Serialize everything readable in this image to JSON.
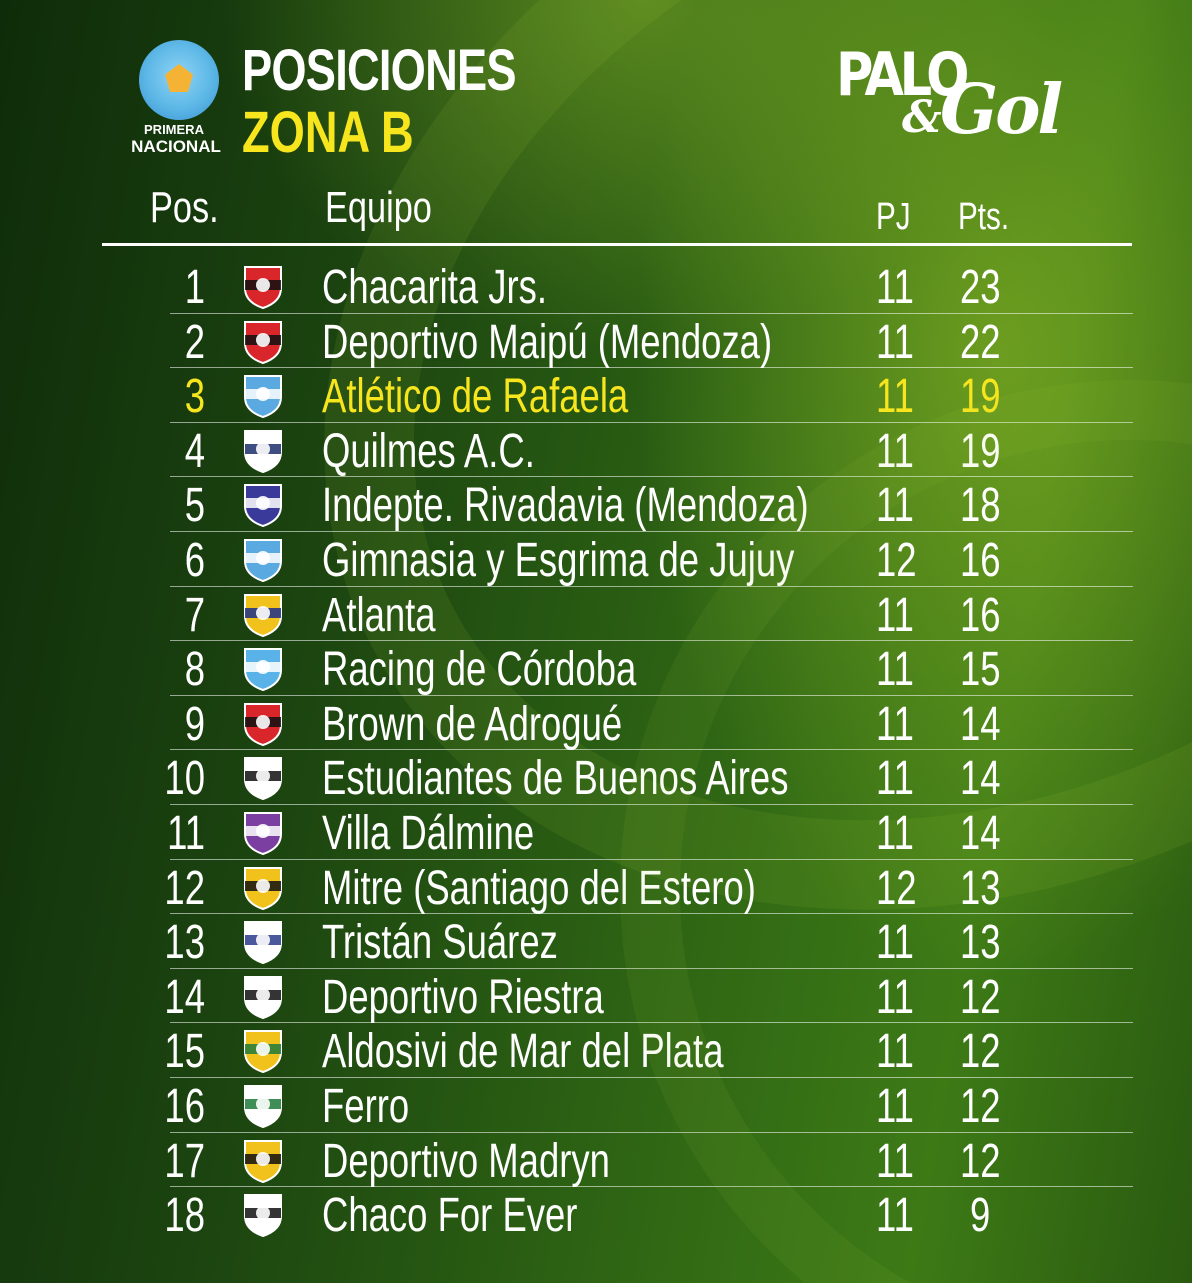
{
  "league": {
    "line1": "PRIMERA",
    "line2": "NACIONAL"
  },
  "header": {
    "title": "POSICIONES",
    "subtitle": "ZONA B"
  },
  "brand": {
    "palo": "PALO",
    "amp": "&",
    "gol": "Gol"
  },
  "table": {
    "columns": {
      "pos": "Pos.",
      "team": "Equipo",
      "pj": "PJ",
      "pts": "Pts."
    },
    "highlight_color": "#f7e51d",
    "rows": [
      {
        "pos": "1",
        "team": "Chacarita Jrs.",
        "pj": "11",
        "pts": "23",
        "crest": "chacarita-crest-icon",
        "colors": [
          "#d8262b",
          "#111111"
        ]
      },
      {
        "pos": "2",
        "team": "Deportivo Maipú (Mendoza)",
        "pj": "11",
        "pts": "22",
        "crest": "maipu-crest-icon",
        "colors": [
          "#d8262b",
          "#111111"
        ]
      },
      {
        "pos": "3",
        "team": "Atlético de Rafaela",
        "pj": "11",
        "pts": "19",
        "crest": "rafaela-crest-icon",
        "colors": [
          "#5aa9e0",
          "#ffffff"
        ]
      },
      {
        "pos": "4",
        "team": "Quilmes A.C.",
        "pj": "11",
        "pts": "19",
        "crest": "quilmes-crest-icon",
        "colors": [
          "#ffffff",
          "#1c2f6b"
        ]
      },
      {
        "pos": "5",
        "team": "Indepte. Rivadavia (Mendoza)",
        "pj": "11",
        "pts": "18",
        "crest": "independiente-rivadavia-crest-icon",
        "colors": [
          "#3a3a9a",
          "#ffffff"
        ]
      },
      {
        "pos": "6",
        "team": "Gimnasia y Esgrima de Jujuy",
        "pj": "12",
        "pts": "16",
        "crest": "gimnasia-jujuy-crest-icon",
        "colors": [
          "#5aa9e0",
          "#ffffff"
        ]
      },
      {
        "pos": "7",
        "team": "Atlanta",
        "pj": "11",
        "pts": "16",
        "crest": "atlanta-crest-icon",
        "colors": [
          "#f1c21b",
          "#1c2f8b"
        ]
      },
      {
        "pos": "8",
        "team": "Racing de Córdoba",
        "pj": "11",
        "pts": "15",
        "crest": "racing-cordoba-crest-icon",
        "colors": [
          "#5ab3e8",
          "#ffffff"
        ]
      },
      {
        "pos": "9",
        "team": "Brown de Adrogué",
        "pj": "11",
        "pts": "14",
        "crest": "brown-adrogue-crest-icon",
        "colors": [
          "#d8262b",
          "#111111"
        ]
      },
      {
        "pos": "10",
        "team": "Estudiantes de Buenos Aires",
        "pj": "11",
        "pts": "14",
        "crest": "estudiantes-ba-crest-icon",
        "colors": [
          "#ffffff",
          "#111111"
        ]
      },
      {
        "pos": "11",
        "team": "Villa Dálmine",
        "pj": "11",
        "pts": "14",
        "crest": "villa-dalmine-crest-icon",
        "colors": [
          "#7a3fa0",
          "#ffffff"
        ]
      },
      {
        "pos": "12",
        "team": "Mitre (Santiago del Estero)",
        "pj": "12",
        "pts": "13",
        "crest": "mitre-crest-icon",
        "colors": [
          "#f1c21b",
          "#111111"
        ]
      },
      {
        "pos": "13",
        "team": "Tristán Suárez",
        "pj": "11",
        "pts": "13",
        "crest": "tristan-suarez-crest-icon",
        "colors": [
          "#ffffff",
          "#2a3b8b"
        ]
      },
      {
        "pos": "14",
        "team": "Deportivo Riestra",
        "pj": "11",
        "pts": "12",
        "crest": "riestra-crest-icon",
        "colors": [
          "#ffffff",
          "#111111"
        ]
      },
      {
        "pos": "15",
        "team": "Aldosivi de Mar del Plata",
        "pj": "11",
        "pts": "12",
        "crest": "aldosivi-crest-icon",
        "colors": [
          "#f1c21b",
          "#1f7a3a"
        ]
      },
      {
        "pos": "16",
        "team": "Ferro",
        "pj": "11",
        "pts": "12",
        "crest": "ferro-crest-icon",
        "colors": [
          "#ffffff",
          "#1f7a3a"
        ]
      },
      {
        "pos": "17",
        "team": "Deportivo Madryn",
        "pj": "11",
        "pts": "12",
        "crest": "madryn-crest-icon",
        "colors": [
          "#f1c21b",
          "#111111"
        ]
      },
      {
        "pos": "18",
        "team": "Chaco For Ever",
        "pj": "11",
        "pts": "9",
        "crest": "chaco-for-ever-crest-icon",
        "colors": [
          "#ffffff",
          "#111111"
        ]
      }
    ]
  }
}
